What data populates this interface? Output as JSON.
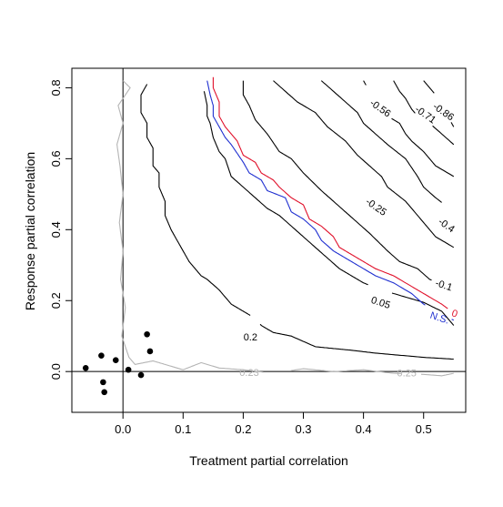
{
  "chart_data": {
    "type": "contour",
    "title": "",
    "xlabel": "Treatment partial correlation",
    "ylabel": "Response partial correlation",
    "xlim": [
      -0.085,
      0.57
    ],
    "ylim": [
      -0.115,
      0.855
    ],
    "xticks": [
      {
        "value": 0.0,
        "label": "0.0"
      },
      {
        "value": 0.1,
        "label": "0.1"
      },
      {
        "value": 0.2,
        "label": "0.2"
      },
      {
        "value": 0.3,
        "label": "0.3"
      },
      {
        "value": 0.4,
        "label": "0.4"
      },
      {
        "value": 0.5,
        "label": "0.5"
      }
    ],
    "yticks": [
      {
        "value": 0.0,
        "label": "0.0"
      },
      {
        "value": 0.2,
        "label": "0.2"
      },
      {
        "value": 0.4,
        "label": "0.4"
      },
      {
        "value": 0.6,
        "label": "0.6"
      },
      {
        "value": 0.8,
        "label": "0.8"
      }
    ],
    "reference_lines": {
      "x": 0,
      "y": 0
    },
    "colors": {
      "black": "#000000",
      "gray": "#b4b4b4",
      "red": "#e0102a",
      "blue": "#1f2fd0"
    },
    "contours": [
      {
        "label": "0.25",
        "color": "gray",
        "label_at": [
          0.472,
          -0.004
        ],
        "points": [
          [
            0.0,
            0.82
          ],
          [
            0.012,
            0.8
          ],
          [
            -0.008,
            0.75
          ],
          [
            0.0,
            0.7
          ],
          [
            -0.01,
            0.64
          ],
          [
            -0.005,
            0.58
          ],
          [
            0.0,
            0.5
          ],
          [
            -0.006,
            0.42
          ],
          [
            0.0,
            0.34
          ],
          [
            -0.004,
            0.26
          ],
          [
            0.004,
            0.18
          ],
          [
            -0.002,
            0.1
          ],
          [
            0.01,
            0.04
          ],
          [
            0.02,
            0.02
          ],
          [
            0.05,
            0.03
          ],
          [
            0.07,
            0.02
          ],
          [
            0.1,
            0.005
          ],
          [
            0.13,
            0.025
          ],
          [
            0.16,
            0.01
          ],
          [
            0.2,
            0.005
          ],
          [
            0.25,
            -0.005
          ],
          [
            0.3,
            0.008
          ],
          [
            0.35,
            0.0
          ],
          [
            0.4,
            0.005
          ],
          [
            0.45,
            -0.005
          ],
          [
            0.5,
            -0.008
          ],
          [
            0.53,
            -0.012
          ],
          [
            0.55,
            -0.005
          ]
        ],
        "gaps": [
          [
            0.235,
            0.275
          ],
          [
            0.465,
            0.495
          ]
        ]
      },
      {
        "label": "0.23",
        "color": "gray",
        "label_at": [
          0.21,
          -0.002
        ],
        "points": []
      },
      {
        "label": "0.2",
        "color": "black",
        "label_at": [
          0.212,
          0.098
        ],
        "points": [
          [
            0.04,
            0.81
          ],
          [
            0.03,
            0.78
          ],
          [
            0.03,
            0.73
          ],
          [
            0.04,
            0.7
          ],
          [
            0.04,
            0.66
          ],
          [
            0.05,
            0.63
          ],
          [
            0.05,
            0.58
          ],
          [
            0.06,
            0.56
          ],
          [
            0.06,
            0.52
          ],
          [
            0.07,
            0.48
          ],
          [
            0.07,
            0.44
          ],
          [
            0.08,
            0.4
          ],
          [
            0.09,
            0.37
          ],
          [
            0.1,
            0.34
          ],
          [
            0.11,
            0.31
          ],
          [
            0.12,
            0.29
          ],
          [
            0.13,
            0.27
          ],
          [
            0.14,
            0.26
          ],
          [
            0.16,
            0.23
          ],
          [
            0.18,
            0.19
          ],
          [
            0.2,
            0.17
          ],
          [
            0.22,
            0.15
          ],
          [
            0.23,
            0.13
          ],
          [
            0.25,
            0.11
          ],
          [
            0.28,
            0.1
          ],
          [
            0.3,
            0.085
          ],
          [
            0.32,
            0.07
          ],
          [
            0.35,
            0.065
          ],
          [
            0.38,
            0.06
          ],
          [
            0.42,
            0.052
          ],
          [
            0.46,
            0.046
          ],
          [
            0.5,
            0.04
          ],
          [
            0.55,
            0.035
          ]
        ],
        "gaps": [
          [
            0.195,
            0.228
          ]
        ]
      },
      {
        "label": "0.05",
        "color": "black",
        "label_at": [
          0.427,
          0.196
        ],
        "points": [
          [
            0.135,
            0.79
          ],
          [
            0.14,
            0.75
          ],
          [
            0.14,
            0.72
          ],
          [
            0.145,
            0.7
          ],
          [
            0.15,
            0.66
          ],
          [
            0.16,
            0.62
          ],
          [
            0.17,
            0.6
          ],
          [
            0.18,
            0.55
          ],
          [
            0.2,
            0.52
          ],
          [
            0.22,
            0.49
          ],
          [
            0.24,
            0.46
          ],
          [
            0.26,
            0.44
          ],
          [
            0.28,
            0.41
          ],
          [
            0.3,
            0.38
          ],
          [
            0.32,
            0.35
          ],
          [
            0.34,
            0.32
          ],
          [
            0.36,
            0.29
          ],
          [
            0.38,
            0.27
          ],
          [
            0.4,
            0.25
          ],
          [
            0.43,
            0.23
          ],
          [
            0.46,
            0.215
          ],
          [
            0.5,
            0.195
          ],
          [
            0.53,
            0.17
          ],
          [
            0.55,
            0.13
          ]
        ],
        "gaps": [
          [
            0.41,
            0.446
          ]
        ]
      },
      {
        "label": "N.S.",
        "color": "blue",
        "label_at": [
          0.525,
          0.153
        ],
        "points": [
          [
            0.14,
            0.82
          ],
          [
            0.145,
            0.78
          ],
          [
            0.15,
            0.75
          ],
          [
            0.15,
            0.72
          ],
          [
            0.16,
            0.69
          ],
          [
            0.17,
            0.66
          ],
          [
            0.18,
            0.64
          ],
          [
            0.2,
            0.59
          ],
          [
            0.21,
            0.56
          ],
          [
            0.23,
            0.54
          ],
          [
            0.24,
            0.51
          ],
          [
            0.27,
            0.49
          ],
          [
            0.28,
            0.45
          ],
          [
            0.3,
            0.43
          ],
          [
            0.32,
            0.4
          ],
          [
            0.33,
            0.37
          ],
          [
            0.35,
            0.34
          ],
          [
            0.37,
            0.32
          ],
          [
            0.39,
            0.3
          ],
          [
            0.42,
            0.27
          ],
          [
            0.45,
            0.25
          ],
          [
            0.48,
            0.22
          ],
          [
            0.5,
            0.19
          ],
          [
            0.53,
            0.16
          ],
          [
            0.55,
            0.145
          ]
        ],
        "gaps": [
          [
            0.505,
            0.545
          ]
        ]
      },
      {
        "label": "0",
        "color": "red",
        "label_at": [
          0.55,
          0.165
        ],
        "points": [
          [
            0.15,
            0.83
          ],
          [
            0.15,
            0.8
          ],
          [
            0.16,
            0.76
          ],
          [
            0.16,
            0.72
          ],
          [
            0.17,
            0.69
          ],
          [
            0.18,
            0.67
          ],
          [
            0.19,
            0.65
          ],
          [
            0.2,
            0.61
          ],
          [
            0.22,
            0.59
          ],
          [
            0.23,
            0.56
          ],
          [
            0.25,
            0.54
          ],
          [
            0.26,
            0.52
          ],
          [
            0.28,
            0.49
          ],
          [
            0.3,
            0.47
          ],
          [
            0.31,
            0.43
          ],
          [
            0.33,
            0.41
          ],
          [
            0.35,
            0.38
          ],
          [
            0.36,
            0.35
          ],
          [
            0.38,
            0.33
          ],
          [
            0.4,
            0.31
          ],
          [
            0.42,
            0.29
          ],
          [
            0.45,
            0.27
          ],
          [
            0.48,
            0.24
          ],
          [
            0.5,
            0.22
          ],
          [
            0.53,
            0.19
          ],
          [
            0.55,
            0.165
          ]
        ],
        "gaps": [
          [
            0.541,
            0.557
          ]
        ]
      },
      {
        "label": "-0.1",
        "color": "black",
        "label_at": [
          0.532,
          0.245
        ],
        "points": [
          [
            0.2,
            0.82
          ],
          [
            0.2,
            0.78
          ],
          [
            0.21,
            0.75
          ],
          [
            0.22,
            0.71
          ],
          [
            0.24,
            0.67
          ],
          [
            0.26,
            0.62
          ],
          [
            0.28,
            0.6
          ],
          [
            0.3,
            0.56
          ],
          [
            0.33,
            0.51
          ],
          [
            0.35,
            0.48
          ],
          [
            0.37,
            0.45
          ],
          [
            0.39,
            0.42
          ],
          [
            0.41,
            0.39
          ],
          [
            0.44,
            0.34
          ],
          [
            0.46,
            0.31
          ],
          [
            0.49,
            0.29
          ],
          [
            0.51,
            0.26
          ],
          [
            0.55,
            0.23
          ]
        ],
        "gaps": [
          [
            0.515,
            0.548
          ]
        ]
      },
      {
        "label": "-0.25",
        "color": "black",
        "label_at": [
          0.418,
          0.467
        ],
        "points": [
          [
            0.25,
            0.82
          ],
          [
            0.27,
            0.79
          ],
          [
            0.29,
            0.76
          ],
          [
            0.32,
            0.73
          ],
          [
            0.34,
            0.69
          ],
          [
            0.37,
            0.65
          ],
          [
            0.39,
            0.61
          ],
          [
            0.41,
            0.58
          ],
          [
            0.43,
            0.55
          ],
          [
            0.44,
            0.52
          ],
          [
            0.47,
            0.48
          ],
          [
            0.5,
            0.42
          ],
          [
            0.52,
            0.38
          ],
          [
            0.55,
            0.35
          ]
        ],
        "gaps": [
          [
            0.398,
            0.438
          ]
        ]
      },
      {
        "label": "-0.4",
        "color": "black",
        "label_at": [
          0.535,
          0.415
        ],
        "points": [
          [
            0.33,
            0.82
          ],
          [
            0.35,
            0.79
          ],
          [
            0.37,
            0.76
          ],
          [
            0.39,
            0.73
          ],
          [
            0.4,
            0.7
          ],
          [
            0.42,
            0.67
          ],
          [
            0.44,
            0.64
          ],
          [
            0.47,
            0.6
          ],
          [
            0.49,
            0.55
          ],
          [
            0.5,
            0.52
          ],
          [
            0.52,
            0.49
          ],
          [
            0.55,
            0.45
          ]
        ],
        "gaps": [
          [
            0.518,
            0.552
          ]
        ]
      },
      {
        "label": "-0.56",
        "color": "black",
        "label_at": [
          0.425,
          0.745
        ],
        "points": [
          [
            0.4,
            0.82
          ],
          [
            0.41,
            0.79
          ],
          [
            0.43,
            0.76
          ],
          [
            0.44,
            0.72
          ],
          [
            0.46,
            0.7
          ],
          [
            0.47,
            0.67
          ],
          [
            0.48,
            0.65
          ],
          [
            0.5,
            0.62
          ],
          [
            0.52,
            0.58
          ],
          [
            0.55,
            0.55
          ]
        ],
        "gaps": [
          [
            0.405,
            0.445
          ]
        ]
      },
      {
        "label": "-0.71",
        "color": "black",
        "label_at": [
          0.5,
          0.727
        ],
        "points": [
          [
            0.45,
            0.82
          ],
          [
            0.46,
            0.79
          ],
          [
            0.47,
            0.77
          ],
          [
            0.48,
            0.74
          ],
          [
            0.49,
            0.72
          ],
          [
            0.51,
            0.7
          ],
          [
            0.53,
            0.67
          ],
          [
            0.55,
            0.64
          ]
        ],
        "gaps": [
          [
            0.486,
            0.514
          ]
        ]
      },
      {
        "label": "-0.86",
        "color": "black",
        "label_at": [
          0.53,
          0.735
        ],
        "points": [
          [
            0.5,
            0.82
          ],
          [
            0.51,
            0.8
          ],
          [
            0.52,
            0.78
          ],
          [
            0.53,
            0.75
          ],
          [
            0.54,
            0.72
          ],
          [
            0.55,
            0.69
          ]
        ],
        "gaps": [
          [
            0.518,
            0.545
          ]
        ]
      }
    ],
    "points": [
      {
        "x": -0.062,
        "y": 0.01
      },
      {
        "x": -0.036,
        "y": 0.045
      },
      {
        "x": -0.033,
        "y": -0.03
      },
      {
        "x": -0.031,
        "y": -0.058
      },
      {
        "x": -0.012,
        "y": 0.032
      },
      {
        "x": 0.009,
        "y": 0.005
      },
      {
        "x": 0.03,
        "y": -0.01
      },
      {
        "x": 0.04,
        "y": 0.105
      },
      {
        "x": 0.045,
        "y": 0.057
      }
    ]
  }
}
